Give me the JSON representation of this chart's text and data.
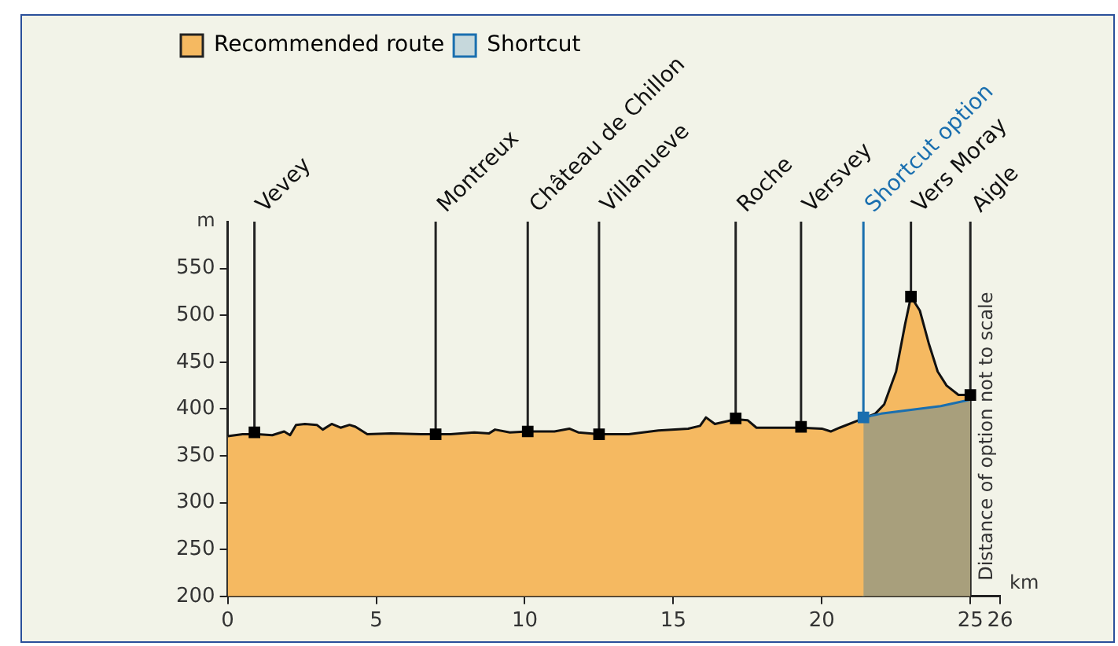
{
  "chart_data": {
    "type": "area",
    "xlabel": "km",
    "ylabel": "m",
    "xlim": [
      0,
      26
    ],
    "xticks": [
      0,
      5,
      10,
      15,
      20,
      25,
      26
    ],
    "ylim": [
      200,
      600
    ],
    "yticks": [
      200,
      250,
      300,
      350,
      400,
      450,
      500,
      550
    ],
    "grid": false,
    "legend": "top left",
    "annotations": [
      "Distance of option not to scale"
    ],
    "series": [
      {
        "name": "Recommended route",
        "color": "#f5b961",
        "x": [
          0,
          0.5,
          1.0,
          1.5,
          1.9,
          2.1,
          2.3,
          2.6,
          3.0,
          3.2,
          3.5,
          3.8,
          4.1,
          4.3,
          4.7,
          5.5,
          6.5,
          7.5,
          8.3,
          8.8,
          9.0,
          9.5,
          10.1,
          11.0,
          11.5,
          11.8,
          12.5,
          13.5,
          14.5,
          15.5,
          15.9,
          16.1,
          16.4,
          17.1,
          17.5,
          17.8,
          18.5,
          19.3,
          20.0,
          20.3,
          20.6,
          21.4,
          21.8,
          22.1,
          22.5,
          22.8,
          23.0,
          23.3,
          23.6,
          23.9,
          24.2,
          24.6,
          25.0
        ],
        "values": [
          371,
          373,
          373,
          372,
          376,
          372,
          383,
          384,
          383,
          378,
          384,
          380,
          383,
          381,
          373,
          374,
          373,
          373,
          375,
          374,
          378,
          375,
          376,
          376,
          379,
          375,
          373,
          373,
          377,
          379,
          382,
          391,
          384,
          389,
          388,
          380,
          380,
          380,
          379,
          376,
          380,
          390,
          395,
          405,
          440,
          490,
          520,
          505,
          470,
          440,
          425,
          415,
          415
        ]
      },
      {
        "name": "Shortcut",
        "color": "#1a6faf",
        "x": [
          21.4,
          22,
          23,
          24,
          25
        ],
        "values": [
          391,
          395,
          399,
          403,
          410
        ]
      },
      {
        "type": "scatter",
        "color": "#000000",
        "marker": "square",
        "x": [
          0.9,
          7.0,
          10.1,
          12.5,
          17.1,
          19.3,
          21.4,
          23.0,
          25.0
        ],
        "values": [
          375,
          373,
          376,
          373,
          390,
          381,
          391,
          520,
          415
        ],
        "colors": [
          "#000000",
          "#000000",
          "#000000",
          "#000000",
          "#000000",
          "#000000",
          "#1a6faf",
          "#000000",
          "#000000"
        ]
      }
    ],
    "ref_lines": [
      {
        "axis": "x",
        "value": 0.9,
        "label": "Vevey"
      },
      {
        "axis": "x",
        "value": 7.0,
        "label": "Montreux"
      },
      {
        "axis": "x",
        "value": 10.1,
        "label": "Château de Chillon"
      },
      {
        "axis": "x",
        "value": 12.5,
        "label": "Villanueve"
      },
      {
        "axis": "x",
        "value": 17.1,
        "label": "Roche"
      },
      {
        "axis": "x",
        "value": 19.3,
        "label": "Versvey"
      },
      {
        "axis": "x",
        "value": 21.4,
        "label": "Shortcut option",
        "color": "#1a6faf"
      },
      {
        "axis": "x",
        "value": 23.0,
        "label": "Vers Moray"
      },
      {
        "axis": "x",
        "value": 25.0,
        "label": "Aigle"
      }
    ]
  }
}
